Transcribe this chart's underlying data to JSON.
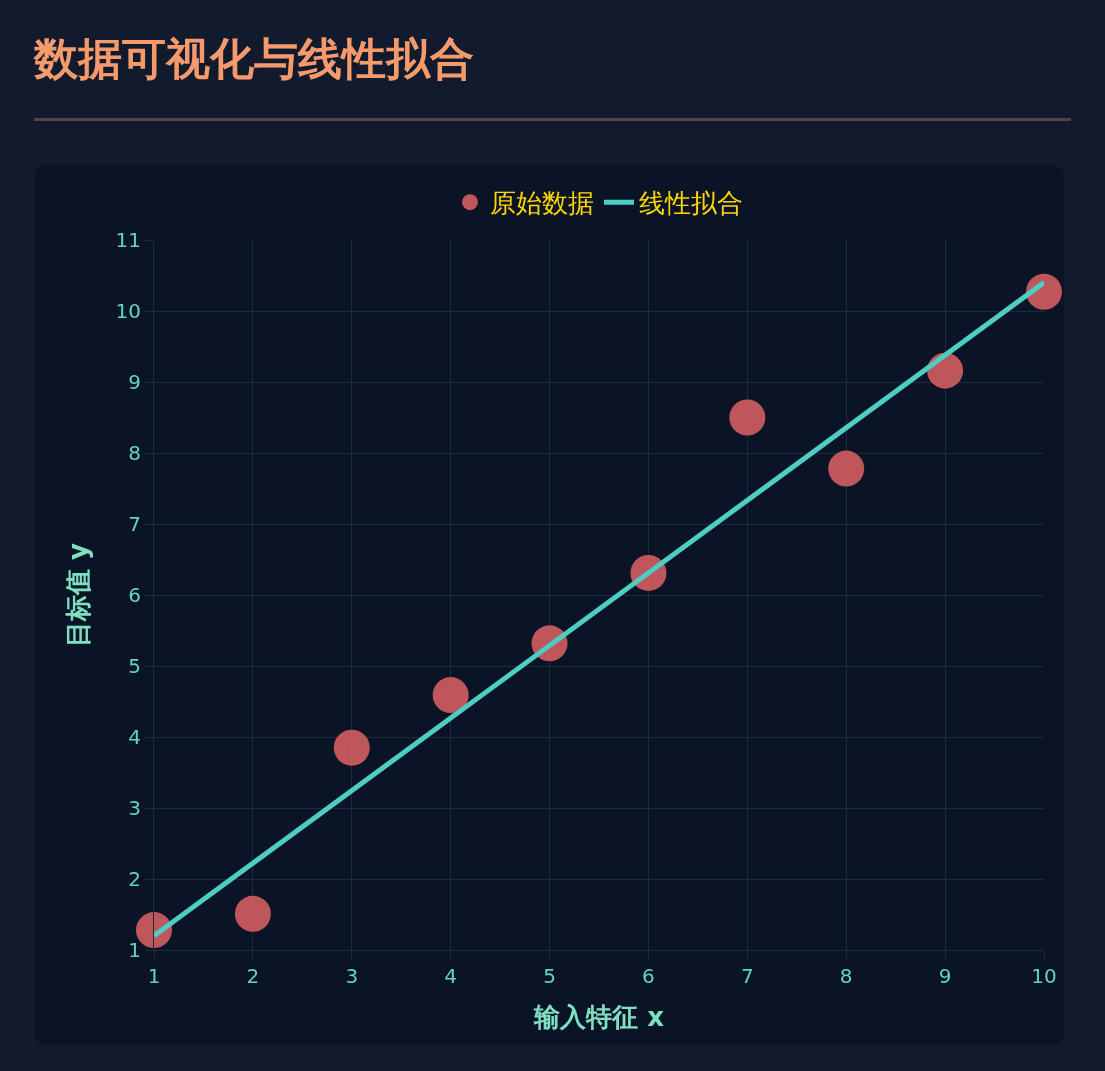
{
  "chart_data": {
    "type": "scatter",
    "title": "数据可视化与线性拟合",
    "xlabel": "输入特征 x",
    "ylabel": "目标值 y",
    "x": [
      1,
      2,
      3,
      4,
      5,
      6,
      7,
      8,
      9,
      10
    ],
    "series": [
      {
        "name": "原始数据",
        "type": "scatter",
        "color": "#d35d62",
        "marker": "circle",
        "values": [
          1.28,
          1.51,
          3.85,
          4.59,
          5.32,
          6.31,
          8.5,
          7.78,
          9.16,
          10.27
        ]
      },
      {
        "name": "线性拟合",
        "type": "line",
        "color": "#4ecdc4",
        "line_style": "solid",
        "marker": "none",
        "x": [
          1,
          10
        ],
        "values": [
          1.2,
          10.4
        ]
      }
    ],
    "xlim": [
      1,
      10
    ],
    "xticks": [
      1,
      2,
      3,
      4,
      5,
      6,
      7,
      8,
      9,
      10
    ],
    "ylim": [
      1,
      11
    ],
    "yticks": [
      1,
      2,
      3,
      4,
      5,
      6,
      7,
      8,
      9,
      10,
      11
    ],
    "grid": true,
    "legend": "top"
  }
}
